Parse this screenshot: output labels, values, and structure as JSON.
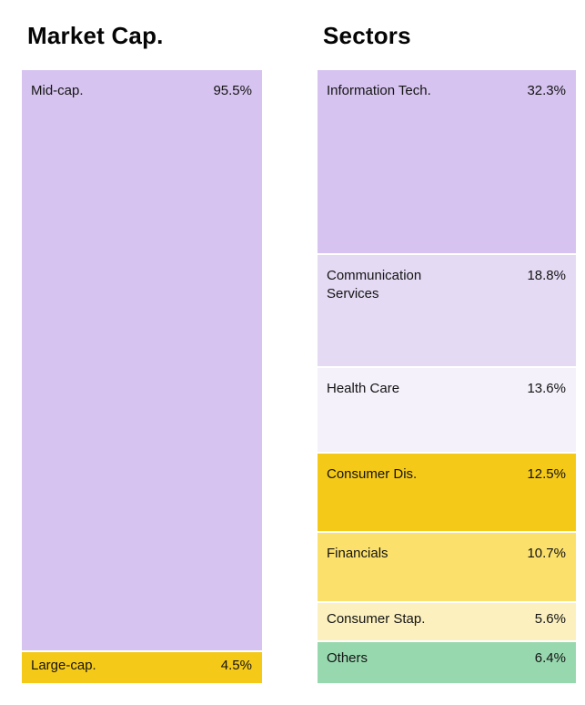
{
  "page": {
    "background_color": "#ffffff",
    "text_color": "#141414"
  },
  "palette": {
    "lavender": "#d6c3ef",
    "lavender_light": "#e4daf3",
    "lavender_faint": "#f4f1fa",
    "gold": "#f5c918",
    "yellow": "#fbe06c",
    "pale_yellow": "#fbf0be",
    "green": "#98d8af"
  },
  "chart_data": [
    {
      "type": "bar",
      "stacked": true,
      "orientation": "vertical",
      "title": "Market Cap.",
      "unit": "%",
      "total": 100,
      "legend_position": "none",
      "grid": false,
      "categories": [
        "Mid-cap.",
        "Large-cap."
      ],
      "values": [
        95.5,
        4.5
      ],
      "segments": [
        {
          "label": "Mid-cap.",
          "value": 95.5,
          "display": "95.5%",
          "color": "#d6c3ef"
        },
        {
          "label": "Large-cap.",
          "value": 4.5,
          "display": "4.5%",
          "color": "#f5c918"
        }
      ]
    },
    {
      "type": "bar",
      "stacked": true,
      "orientation": "vertical",
      "title": "Sectors",
      "unit": "%",
      "total": 99.9,
      "legend_position": "none",
      "grid": false,
      "categories": [
        "Information Tech.",
        "Communication Services",
        "Health Care",
        "Consumer Dis.",
        "Financials",
        "Consumer Stap.",
        "Others"
      ],
      "values": [
        32.3,
        18.8,
        13.6,
        12.5,
        10.7,
        5.6,
        6.4
      ],
      "segments": [
        {
          "label": "Information Tech.",
          "value": 32.3,
          "display": "32.3%",
          "color": "#d6c3ef"
        },
        {
          "label": "Communication Services",
          "value": 18.8,
          "display": "18.8%",
          "color": "#e4daf3"
        },
        {
          "label": "Health Care",
          "value": 13.6,
          "display": "13.6%",
          "color": "#f4f1fa"
        },
        {
          "label": "Consumer Dis.",
          "value": 12.5,
          "display": "12.5%",
          "color": "#f5c918"
        },
        {
          "label": "Financials",
          "value": 10.7,
          "display": "10.7%",
          "color": "#fbe06c"
        },
        {
          "label": "Consumer Stap.",
          "value": 5.6,
          "display": "5.6%",
          "color": "#fbf0be"
        },
        {
          "label": "Others",
          "value": 6.4,
          "display": "6.4%",
          "color": "#98d8af"
        }
      ]
    }
  ]
}
